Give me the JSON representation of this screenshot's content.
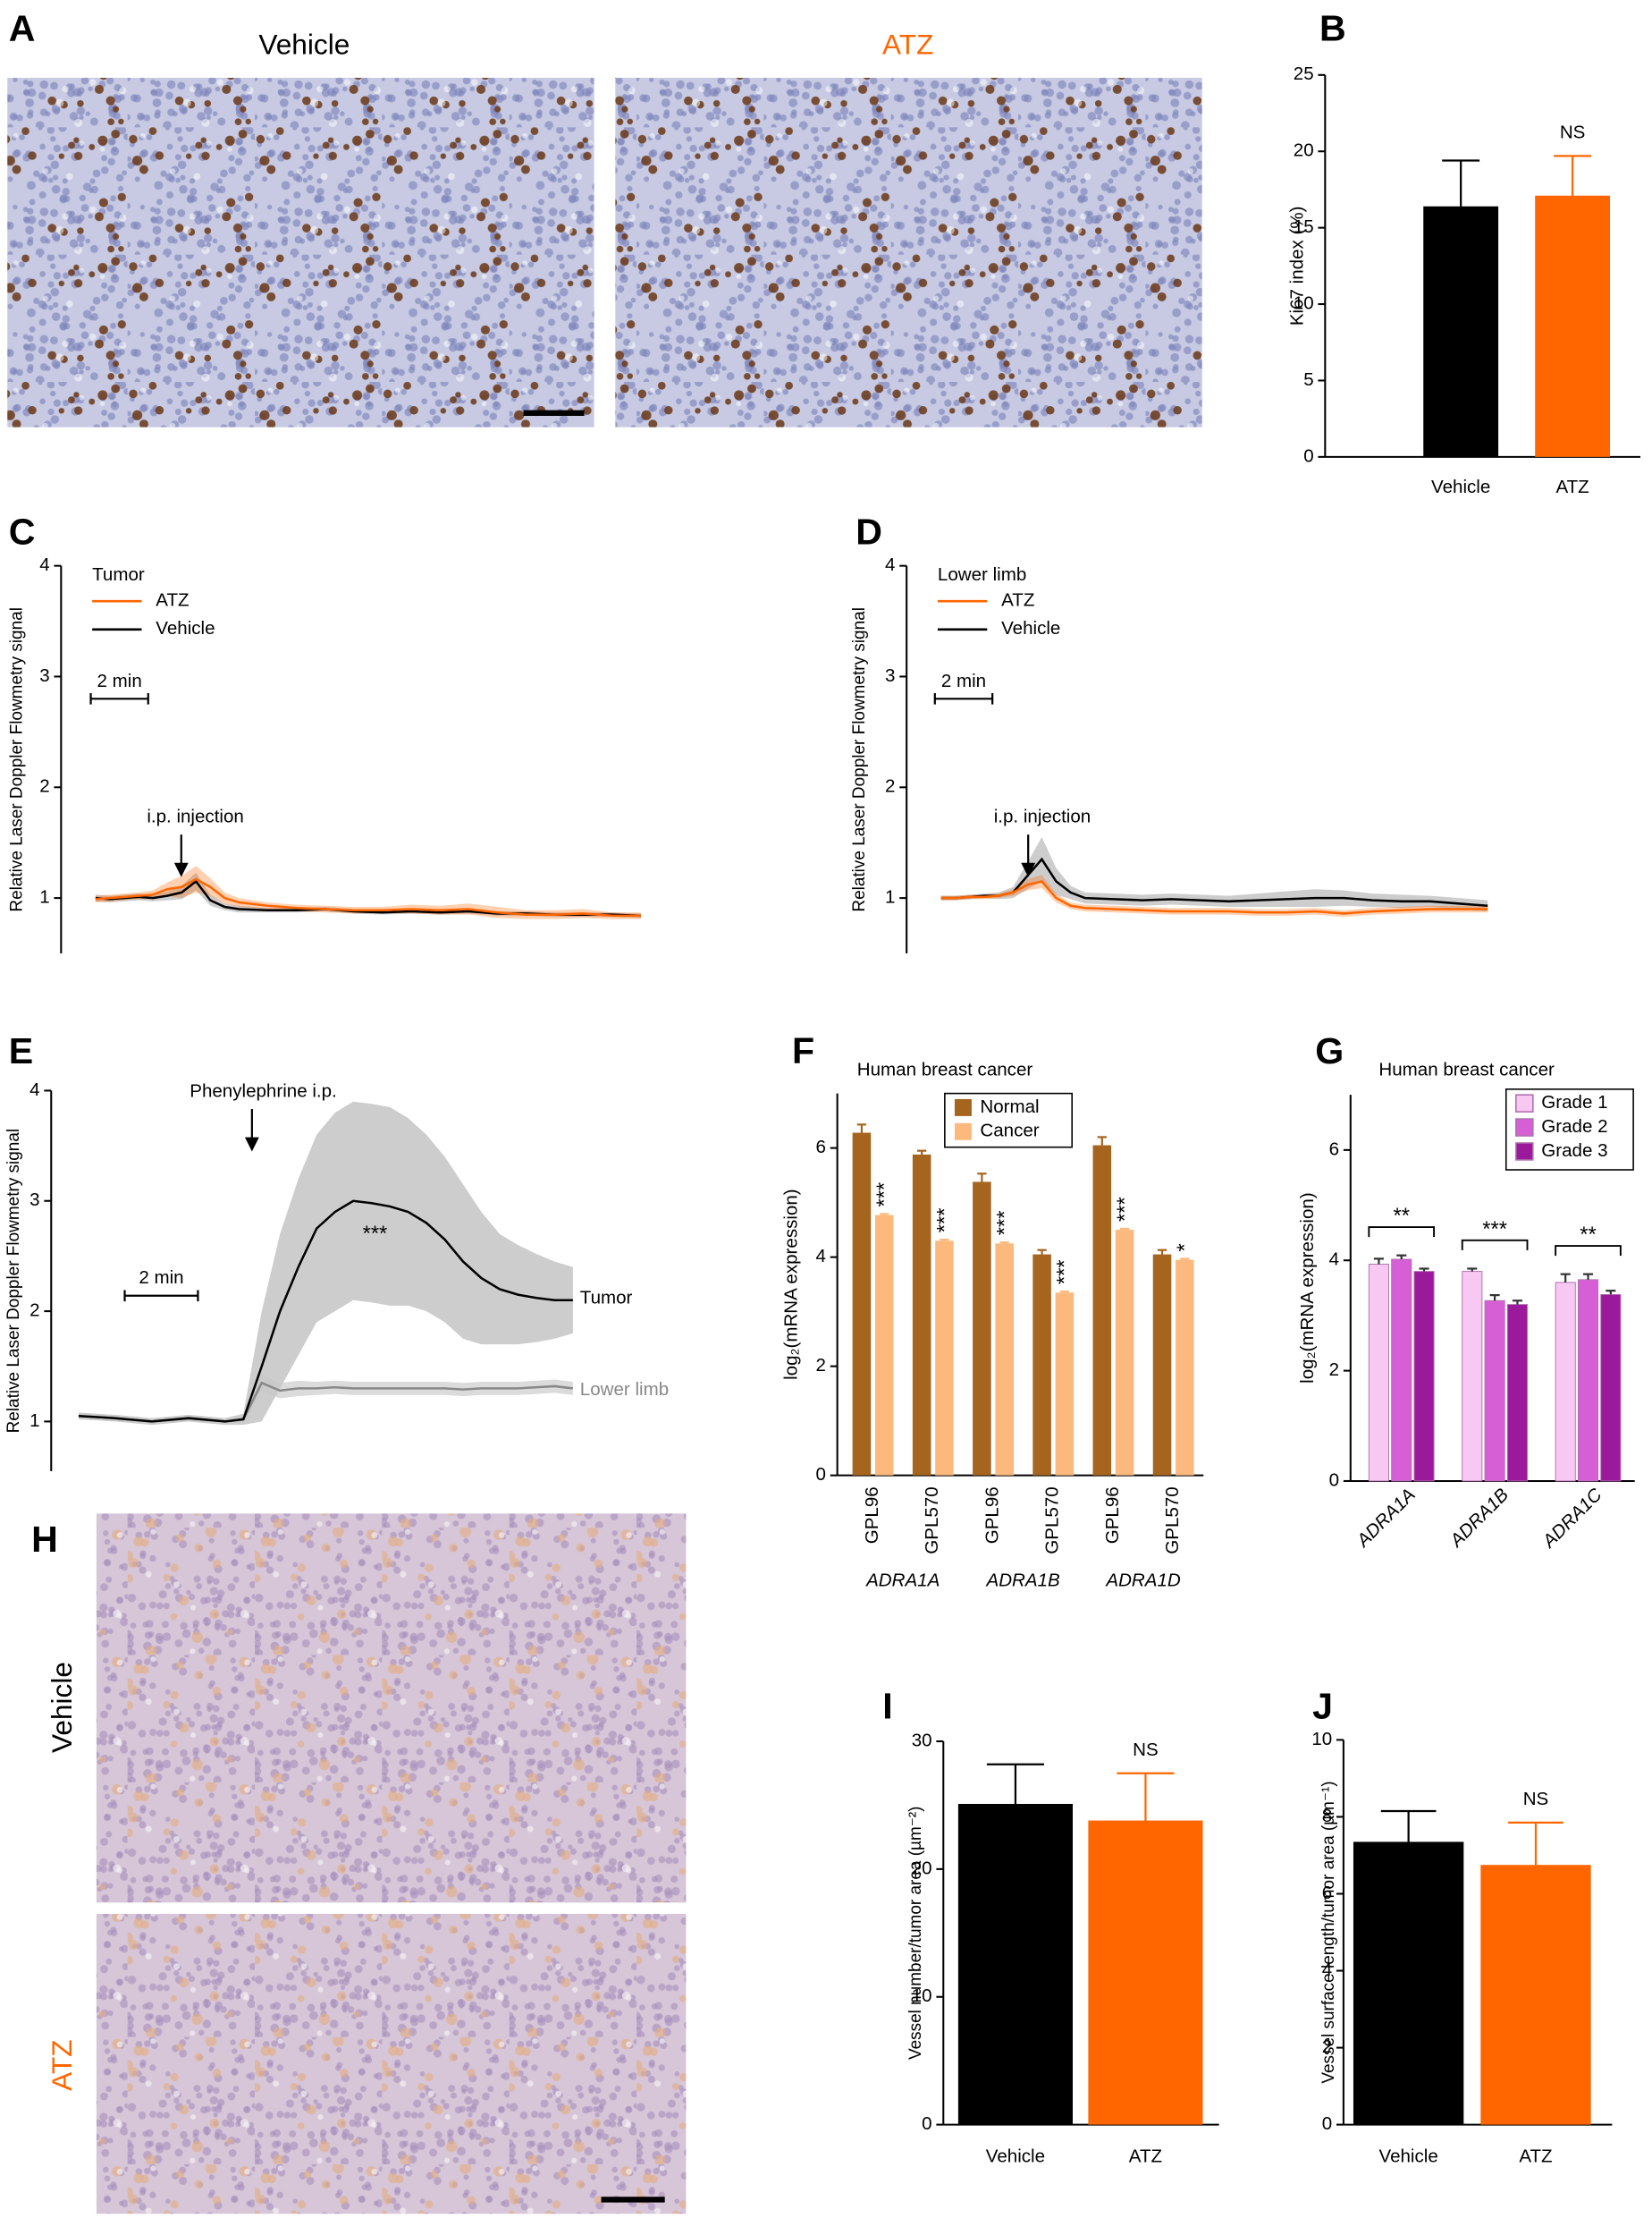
{
  "image_panels": [
    {
      "panel": "A",
      "labels": [
        "Vehicle",
        "ATZ"
      ],
      "label_colors": [
        "#000000",
        "#ff6600"
      ]
    },
    {
      "panel": "H",
      "labels": [
        "Vehicle",
        "ATZ"
      ],
      "label_colors": [
        "#000000",
        "#ff6600"
      ]
    }
  ],
  "chart_data": [
    {
      "panel": "B",
      "type": "bar",
      "ylabel": "Ki67 index (%)",
      "categories": [
        "Vehicle",
        "ATZ"
      ],
      "values": [
        16.4,
        17.1
      ],
      "errors": [
        3.0,
        2.6
      ],
      "colors": [
        "#000000",
        "#ff6600"
      ],
      "ylim": [
        0,
        25
      ],
      "yticks": [
        0,
        5,
        10,
        15,
        20,
        25
      ],
      "annotation": "NS"
    },
    {
      "panel": "C",
      "type": "line",
      "ylabel": "Relative Laser Doppler Flowmetry signal",
      "legend_title": "Tumor",
      "annotation": "i.p. injection",
      "scale_bar": {
        "label": "2 min",
        "length": 2
      },
      "x": [
        0,
        0.5,
        1,
        1.5,
        2,
        2.5,
        3,
        3.5,
        4,
        4.5,
        5,
        6,
        7,
        8,
        9,
        10,
        11,
        12,
        13,
        14,
        15,
        16,
        17,
        18,
        19
      ],
      "xlim": [
        -1.2,
        19
      ],
      "ylim": [
        0.5,
        4
      ],
      "yticks": [
        1,
        2,
        3,
        4
      ],
      "series": [
        {
          "name": "ATZ",
          "color": "#ff6600",
          "values": [
            0.99,
            1.0,
            1.01,
            1.02,
            1.03,
            1.08,
            1.1,
            1.17,
            1.1,
            1.0,
            0.96,
            0.93,
            0.91,
            0.9,
            0.89,
            0.89,
            0.9,
            0.89,
            0.9,
            0.87,
            0.85,
            0.85,
            0.86,
            0.84,
            0.84
          ],
          "errors": [
            0.03,
            0.03,
            0.03,
            0.03,
            0.04,
            0.06,
            0.1,
            0.12,
            0.08,
            0.05,
            0.04,
            0.03,
            0.03,
            0.03,
            0.03,
            0.03,
            0.04,
            0.04,
            0.05,
            0.05,
            0.04,
            0.04,
            0.04,
            0.03,
            0.03
          ]
        },
        {
          "name": "Vehicle",
          "color": "#000000",
          "values": [
            1.0,
            0.99,
            1.0,
            1.01,
            1.0,
            1.02,
            1.05,
            1.15,
            0.98,
            0.92,
            0.9,
            0.89,
            0.89,
            0.9,
            0.88,
            0.87,
            0.88,
            0.87,
            0.88,
            0.86,
            0.86,
            0.85,
            0.85,
            0.85,
            0.84
          ],
          "errors": [
            0.03,
            0.03,
            0.03,
            0.03,
            0.03,
            0.04,
            0.06,
            0.08,
            0.05,
            0.03,
            0.03,
            0.02,
            0.02,
            0.02,
            0.02,
            0.02,
            0.02,
            0.02,
            0.02,
            0.02,
            0.02,
            0.02,
            0.02,
            0.02,
            0.02
          ]
        }
      ]
    },
    {
      "panel": "D",
      "type": "line",
      "ylabel": "Relative Laser Doppler Flowmetry signal",
      "legend_title": "Lower limb",
      "annotation": "i.p. injection",
      "scale_bar": {
        "label": "2 min",
        "length": 2
      },
      "x": [
        0,
        0.5,
        1,
        1.5,
        2,
        2.5,
        3,
        3.5,
        4,
        4.5,
        5,
        6,
        7,
        8,
        9,
        10,
        11,
        12,
        13,
        14,
        15,
        16,
        17,
        18,
        19
      ],
      "xlim": [
        -1.2,
        19
      ],
      "ylim": [
        0.5,
        4
      ],
      "yticks": [
        1,
        2,
        3,
        4
      ],
      "series": [
        {
          "name": "ATZ",
          "color": "#ff6600",
          "values": [
            1.0,
            1.0,
            1.01,
            1.01,
            1.02,
            1.05,
            1.12,
            1.15,
            1.0,
            0.93,
            0.91,
            0.9,
            0.89,
            0.88,
            0.88,
            0.88,
            0.87,
            0.87,
            0.88,
            0.86,
            0.88,
            0.89,
            0.9,
            0.9,
            0.9
          ],
          "errors": [
            0.02,
            0.02,
            0.02,
            0.02,
            0.02,
            0.03,
            0.05,
            0.06,
            0.04,
            0.03,
            0.03,
            0.03,
            0.03,
            0.03,
            0.03,
            0.03,
            0.03,
            0.03,
            0.03,
            0.03,
            0.03,
            0.03,
            0.03,
            0.03,
            0.03
          ]
        },
        {
          "name": "Vehicle",
          "color": "#000000",
          "values": [
            1.0,
            1.0,
            1.01,
            1.02,
            1.02,
            1.05,
            1.2,
            1.35,
            1.15,
            1.05,
            1.0,
            0.99,
            0.98,
            0.99,
            0.98,
            0.97,
            0.98,
            0.99,
            1.0,
            1.0,
            0.98,
            0.97,
            0.97,
            0.95,
            0.93
          ],
          "errors": [
            0.02,
            0.02,
            0.02,
            0.02,
            0.03,
            0.05,
            0.12,
            0.2,
            0.12,
            0.06,
            0.05,
            0.05,
            0.05,
            0.05,
            0.05,
            0.05,
            0.06,
            0.07,
            0.08,
            0.07,
            0.06,
            0.06,
            0.05,
            0.05,
            0.05
          ]
        }
      ]
    },
    {
      "panel": "E",
      "type": "line",
      "ylabel": "Relative Laser Doppler Flowmetry signal",
      "annotation": "Phenylephrine i.p.",
      "significance": "***",
      "scale_bar": {
        "label": "2 min",
        "length": 2
      },
      "x": [
        0,
        1,
        2,
        3,
        4,
        4.5,
        5,
        5.5,
        6,
        6.5,
        7,
        7.5,
        8,
        8.5,
        9,
        9.5,
        10,
        10.5,
        11,
        11.5,
        12,
        12.5,
        13,
        13.5
      ],
      "xlim": [
        -0.75,
        13.5
      ],
      "ylim": [
        0.55,
        4
      ],
      "yticks": [
        1,
        2,
        3,
        4
      ],
      "series": [
        {
          "name": "Tumor",
          "color": "#000000",
          "values": [
            1.05,
            1.03,
            1.0,
            1.03,
            1.0,
            1.02,
            1.5,
            2.0,
            2.4,
            2.75,
            2.9,
            3.0,
            2.98,
            2.95,
            2.9,
            2.8,
            2.65,
            2.45,
            2.3,
            2.2,
            2.15,
            2.12,
            2.1,
            2.1
          ],
          "errors": [
            0.03,
            0.03,
            0.03,
            0.03,
            0.03,
            0.05,
            0.5,
            0.7,
            0.8,
            0.85,
            0.9,
            0.9,
            0.9,
            0.9,
            0.85,
            0.8,
            0.75,
            0.7,
            0.6,
            0.5,
            0.45,
            0.4,
            0.35,
            0.3
          ]
        },
        {
          "name": "Lower limb",
          "color": "#888888",
          "values": [
            1.05,
            1.03,
            1.0,
            1.03,
            1.0,
            1.02,
            1.35,
            1.28,
            1.3,
            1.3,
            1.31,
            1.3,
            1.3,
            1.3,
            1.3,
            1.3,
            1.3,
            1.29,
            1.3,
            1.3,
            1.3,
            1.31,
            1.32,
            1.3
          ],
          "errors": [
            0.03,
            0.03,
            0.03,
            0.03,
            0.03,
            0.03,
            0.08,
            0.07,
            0.07,
            0.06,
            0.06,
            0.06,
            0.06,
            0.06,
            0.06,
            0.06,
            0.06,
            0.06,
            0.06,
            0.06,
            0.06,
            0.06,
            0.06,
            0.06
          ]
        }
      ]
    },
    {
      "panel": "F",
      "type": "bar",
      "title": "Human breast cancer",
      "ylabel": "log₂(mRNA expression)",
      "categories": [
        "GPL96",
        "GPL570",
        "GPL96",
        "GPL570",
        "GPL96",
        "GPL570"
      ],
      "groups": [
        "ADRA1A",
        "ADRA1B",
        "ADRA1D"
      ],
      "series": [
        {
          "name": "Normal",
          "color": "#a5651f",
          "values": [
            6.28,
            5.88,
            5.38,
            4.05,
            6.05,
            4.05
          ],
          "errors": [
            0.15,
            0.07,
            0.15,
            0.08,
            0.15,
            0.08
          ]
        },
        {
          "name": "Cancer",
          "color": "#fbb97e",
          "values": [
            4.77,
            4.3,
            4.25,
            3.35,
            4.5,
            3.95
          ],
          "errors": [
            0.02,
            0.02,
            0.02,
            0.02,
            0.02,
            0.02
          ]
        }
      ],
      "significance": [
        "***",
        "***",
        "***",
        "***",
        "***",
        "*"
      ],
      "ylim": [
        0,
        7
      ],
      "yticks": [
        0,
        2,
        4,
        6
      ]
    },
    {
      "panel": "G",
      "type": "bar",
      "title": "Human breast cancer",
      "ylabel": "log₂(mRNA expression)",
      "categories": [
        "ADRA1A",
        "ADRA1B",
        "ADRA1C"
      ],
      "series": [
        {
          "name": "Grade 1",
          "color": "#f7c8f2",
          "values": [
            3.93,
            3.8,
            3.6
          ],
          "errors": [
            0.1,
            0.05,
            0.15
          ]
        },
        {
          "name": "Grade 2",
          "color": "#d65fd6",
          "values": [
            4.02,
            3.27,
            3.65
          ],
          "errors": [
            0.07,
            0.1,
            0.1
          ]
        },
        {
          "name": "Grade 3",
          "color": "#9b1a9b",
          "values": [
            3.8,
            3.2,
            3.38
          ],
          "errors": [
            0.05,
            0.07,
            0.07
          ]
        }
      ],
      "significance": [
        "**",
        "***",
        "**"
      ],
      "ylim": [
        0,
        7
      ],
      "yticks": [
        0,
        2,
        4,
        6
      ]
    },
    {
      "panel": "I",
      "type": "bar",
      "ylabel": "Vessel number/tumor area (µm⁻²)",
      "categories": [
        "Vehicle",
        "ATZ"
      ],
      "values": [
        25.1,
        23.8
      ],
      "errors": [
        3.1,
        3.7
      ],
      "colors": [
        "#000000",
        "#ff6600"
      ],
      "ylim": [
        0,
        30
      ],
      "yticks": [
        0,
        10,
        20,
        30
      ],
      "annotation": "NS"
    },
    {
      "panel": "J",
      "type": "bar",
      "ylabel": "Vessel surface length/tumor area (µm⁻¹)",
      "categories": [
        "Vehicle",
        "ATZ"
      ],
      "values": [
        7.35,
        6.75
      ],
      "errors": [
        0.8,
        1.1
      ],
      "colors": [
        "#000000",
        "#ff6600"
      ],
      "ylim": [
        0,
        10
      ],
      "yticks": [
        0,
        2,
        4,
        6,
        8,
        10
      ],
      "annotation": "NS"
    }
  ]
}
